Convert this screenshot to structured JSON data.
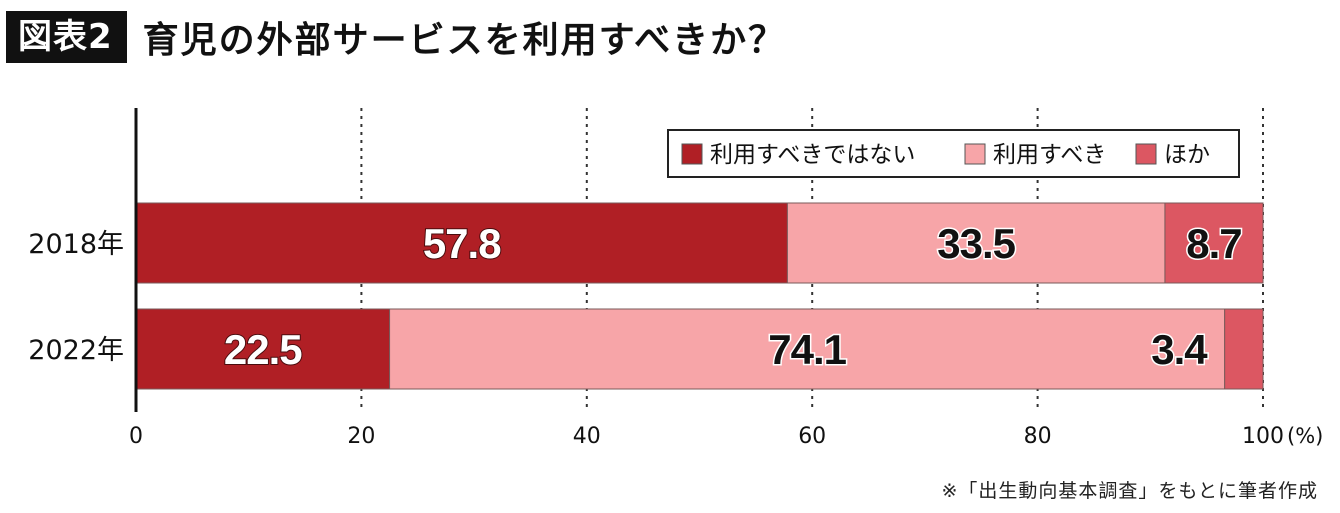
{
  "header": {
    "figure_tag": "図表2",
    "title": "育児の外部サービスを利用すべきか？"
  },
  "chart_data": {
    "type": "bar",
    "orientation": "horizontal",
    "stacked": true,
    "categories": [
      "2018年",
      "2022年"
    ],
    "series": [
      {
        "name": "利用すべきではない",
        "values": [
          57.8,
          22.5
        ],
        "color": "#b01f25"
      },
      {
        "name": "利用すべき",
        "values": [
          33.5,
          74.1
        ],
        "color": "#f7a5a8"
      },
      {
        "name": "ほか",
        "values": [
          8.7,
          3.4
        ],
        "color": "#dc5762"
      }
    ],
    "data_labels": [
      [
        "57.8",
        "33.5",
        "8.7"
      ],
      [
        "22.5",
        "74.1",
        "3.4"
      ]
    ],
    "xlim": [
      0,
      100
    ],
    "xticks": [
      "0",
      "20",
      "40",
      "60",
      "80",
      "100"
    ],
    "xunit": "(%)",
    "grid": "vertical dotted",
    "legend_position": "top-right"
  },
  "footnote": "※「出生動向基本調査」をもとに筆者作成"
}
